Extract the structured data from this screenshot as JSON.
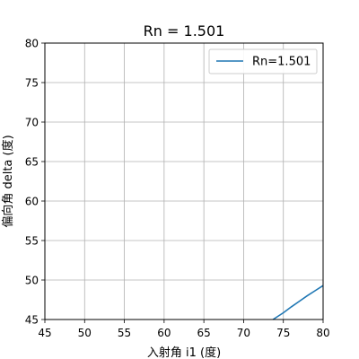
{
  "chart_data": {
    "type": "line",
    "title": "Rn = 1.501",
    "xlabel": "入射角 i1 (度)",
    "ylabel": "偏向角 delta (度)",
    "xlim": [
      45,
      80
    ],
    "ylim": [
      45,
      80
    ],
    "xticks": [
      45,
      50,
      55,
      60,
      65,
      70,
      75,
      80
    ],
    "yticks": [
      45,
      50,
      55,
      60,
      65,
      70,
      75,
      80
    ],
    "grid": true,
    "legend_position": "top-right",
    "series": [
      {
        "name": "Rn=1.501",
        "color": "#1f77b4",
        "x": [
          73.7,
          75.0,
          76.0,
          77.0,
          78.0,
          79.0,
          80.0
        ],
        "y": [
          45.0,
          45.85,
          46.6,
          47.3,
          48.0,
          48.65,
          49.3
        ]
      }
    ]
  }
}
